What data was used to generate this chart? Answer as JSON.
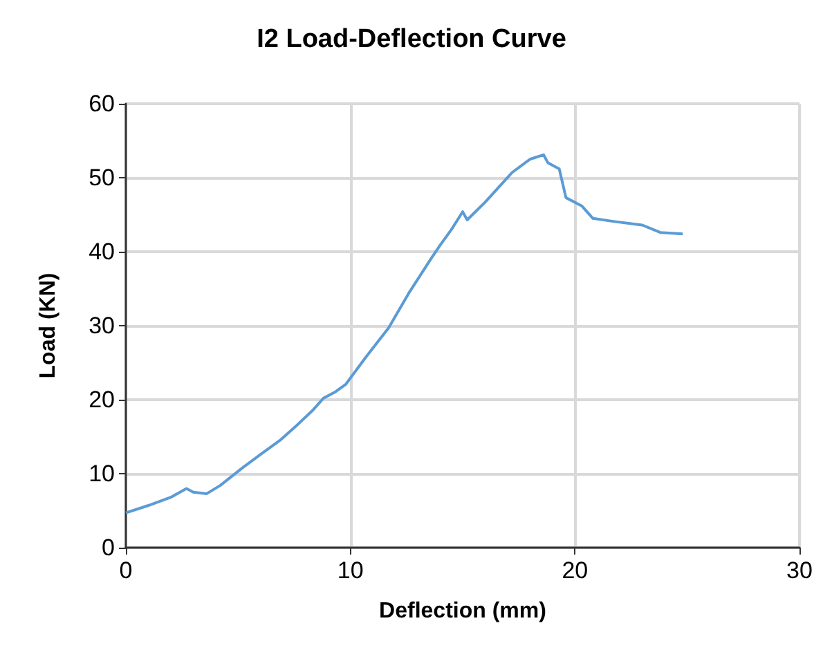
{
  "chart_data": {
    "type": "line",
    "title": "I2 Load-Deflection Curve",
    "xlabel": "Deflection (mm)",
    "ylabel": "Load (KN)",
    "series": [
      {
        "color": "#5b9bd5",
        "x": [
          0,
          1,
          2,
          2.7,
          3.0,
          3.6,
          4.2,
          5.2,
          6.0,
          6.9,
          7.6,
          8.3,
          8.8,
          9.3,
          9.8,
          10.7,
          11.7,
          12.6,
          13.6,
          14.0,
          14.5,
          15.0,
          15.2,
          16.0,
          17.2,
          18.0,
          18.6,
          18.8,
          19.3,
          19.6,
          20.3,
          20.8,
          21.7,
          23.0,
          23.8,
          24.8
        ],
        "values": [
          4.7,
          5.7,
          6.8,
          8.0,
          7.5,
          7.3,
          8.4,
          10.8,
          12.6,
          14.6,
          16.5,
          18.5,
          20.2,
          21.0,
          22.1,
          25.8,
          29.7,
          34.4,
          39.1,
          40.9,
          43.0,
          45.4,
          44.3,
          46.7,
          50.7,
          52.5,
          53.1,
          52.0,
          51.2,
          47.3,
          46.2,
          44.5,
          44.1,
          43.6,
          42.6,
          42.4
        ]
      }
    ],
    "xlim": [
      0,
      30
    ],
    "xticks": [
      0,
      10,
      20,
      30
    ],
    "ylim": [
      0,
      60
    ],
    "yticks": [
      0,
      10,
      20,
      30,
      40,
      50,
      60
    ],
    "grid": true,
    "marker": "none",
    "line_style": "solid"
  }
}
